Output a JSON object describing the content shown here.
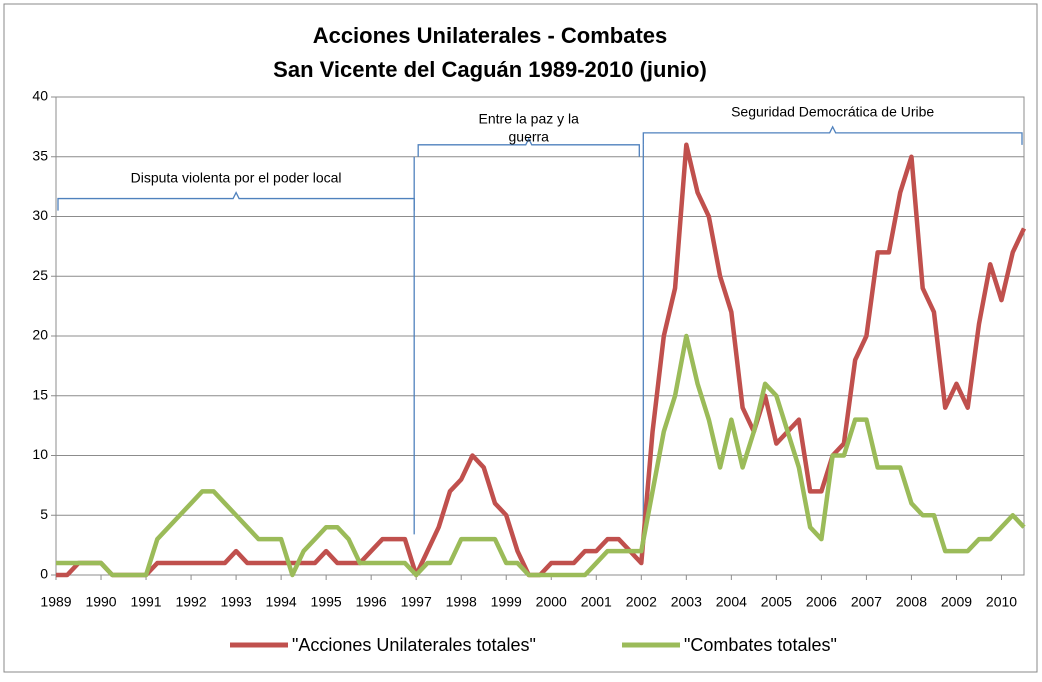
{
  "chart_data": {
    "type": "line",
    "title": [
      "Acciones Unilaterales - Combates",
      "San Vicente del Caguán 1989-2010 (junio)"
    ],
    "x": [
      1989,
      1989.25,
      1989.5,
      1989.75,
      1990,
      1990.25,
      1990.5,
      1990.75,
      1991,
      1991.25,
      1991.5,
      1991.75,
      1992,
      1992.25,
      1992.5,
      1992.75,
      1993,
      1993.25,
      1993.5,
      1993.75,
      1994,
      1994.25,
      1994.5,
      1994.75,
      1995,
      1995.25,
      1995.5,
      1995.75,
      1996,
      1996.25,
      1996.5,
      1996.75,
      1997,
      1997.25,
      1997.5,
      1997.75,
      1998,
      1998.25,
      1998.5,
      1998.75,
      1999,
      1999.25,
      1999.5,
      1999.75,
      2000,
      2000.25,
      2000.5,
      2000.75,
      2001,
      2001.25,
      2001.5,
      2001.75,
      2002,
      2002.25,
      2002.5,
      2002.75,
      2003,
      2003.25,
      2003.5,
      2003.75,
      2004,
      2004.25,
      2004.5,
      2004.75,
      2005,
      2005.25,
      2005.5,
      2005.75,
      2006,
      2006.25,
      2006.5,
      2006.75,
      2007,
      2007.25,
      2007.5,
      2007.75,
      2008,
      2008.25,
      2008.5,
      2008.75,
      2009,
      2009.25,
      2009.5,
      2009.75,
      2010,
      2010.25,
      2010.5
    ],
    "series": [
      {
        "name": "\"Acciones Unilaterales totales\"",
        "color": "#c0504d",
        "values": [
          0,
          0,
          1,
          1,
          1,
          0,
          0,
          0,
          0,
          1,
          1,
          1,
          1,
          1,
          1,
          1,
          2,
          1,
          1,
          1,
          1,
          1,
          1,
          1,
          2,
          1,
          1,
          1,
          2,
          3,
          3,
          3,
          0,
          2,
          4,
          7,
          8,
          10,
          9,
          6,
          5,
          2,
          0,
          0,
          1,
          1,
          1,
          2,
          2,
          3,
          3,
          2,
          1,
          12,
          20,
          24,
          36,
          32,
          30,
          25,
          22,
          14,
          12,
          15,
          11,
          12,
          13,
          7,
          7,
          10,
          11,
          18,
          20,
          27,
          27,
          32,
          35,
          24,
          22,
          14,
          16,
          14,
          21,
          26,
          23,
          27,
          29
        ]
      },
      {
        "name": "\"Combates totales\"",
        "color": "#9bbb59",
        "values": [
          1,
          1,
          1,
          1,
          1,
          0,
          0,
          0,
          0,
          3,
          4,
          5,
          6,
          7,
          7,
          6,
          5,
          4,
          3,
          3,
          3,
          0,
          2,
          3,
          4,
          4,
          3,
          1,
          1,
          1,
          1,
          1,
          0,
          1,
          1,
          1,
          3,
          3,
          3,
          3,
          1,
          1,
          0,
          0,
          0,
          0,
          0,
          0,
          1,
          2,
          2,
          2,
          2,
          7,
          12,
          15,
          20,
          16,
          13,
          9,
          13,
          9,
          12,
          16,
          15,
          12,
          9,
          4,
          3,
          10,
          10,
          13,
          13,
          9,
          9,
          9,
          6,
          5,
          5,
          2,
          2,
          2,
          3,
          3,
          4,
          5,
          4
        ]
      }
    ],
    "xlim": [
      1989,
      2010.5
    ],
    "xticks": [
      1989,
      1990,
      1991,
      1992,
      1993,
      1994,
      1995,
      1996,
      1997,
      1998,
      1999,
      2000,
      2001,
      2002,
      2003,
      2004,
      2005,
      2006,
      2007,
      2008,
      2009,
      2010
    ],
    "ylim": [
      0,
      40
    ],
    "yticks": [
      0,
      5,
      10,
      15,
      20,
      25,
      30,
      35,
      40
    ],
    "grid": true,
    "annotations": [
      {
        "lines": [
          "Disputa violenta por el poder local"
        ],
        "x": [
          1989,
          1997
        ],
        "y": 31.5
      },
      {
        "lines": [
          "Entre la paz y la",
          "guerra"
        ],
        "x": [
          1997,
          2002
        ],
        "y": 36
      },
      {
        "lines": [
          "Seguridad Democrática de Uribe"
        ],
        "x": [
          2002,
          2010.5
        ],
        "y": 37
      }
    ]
  }
}
